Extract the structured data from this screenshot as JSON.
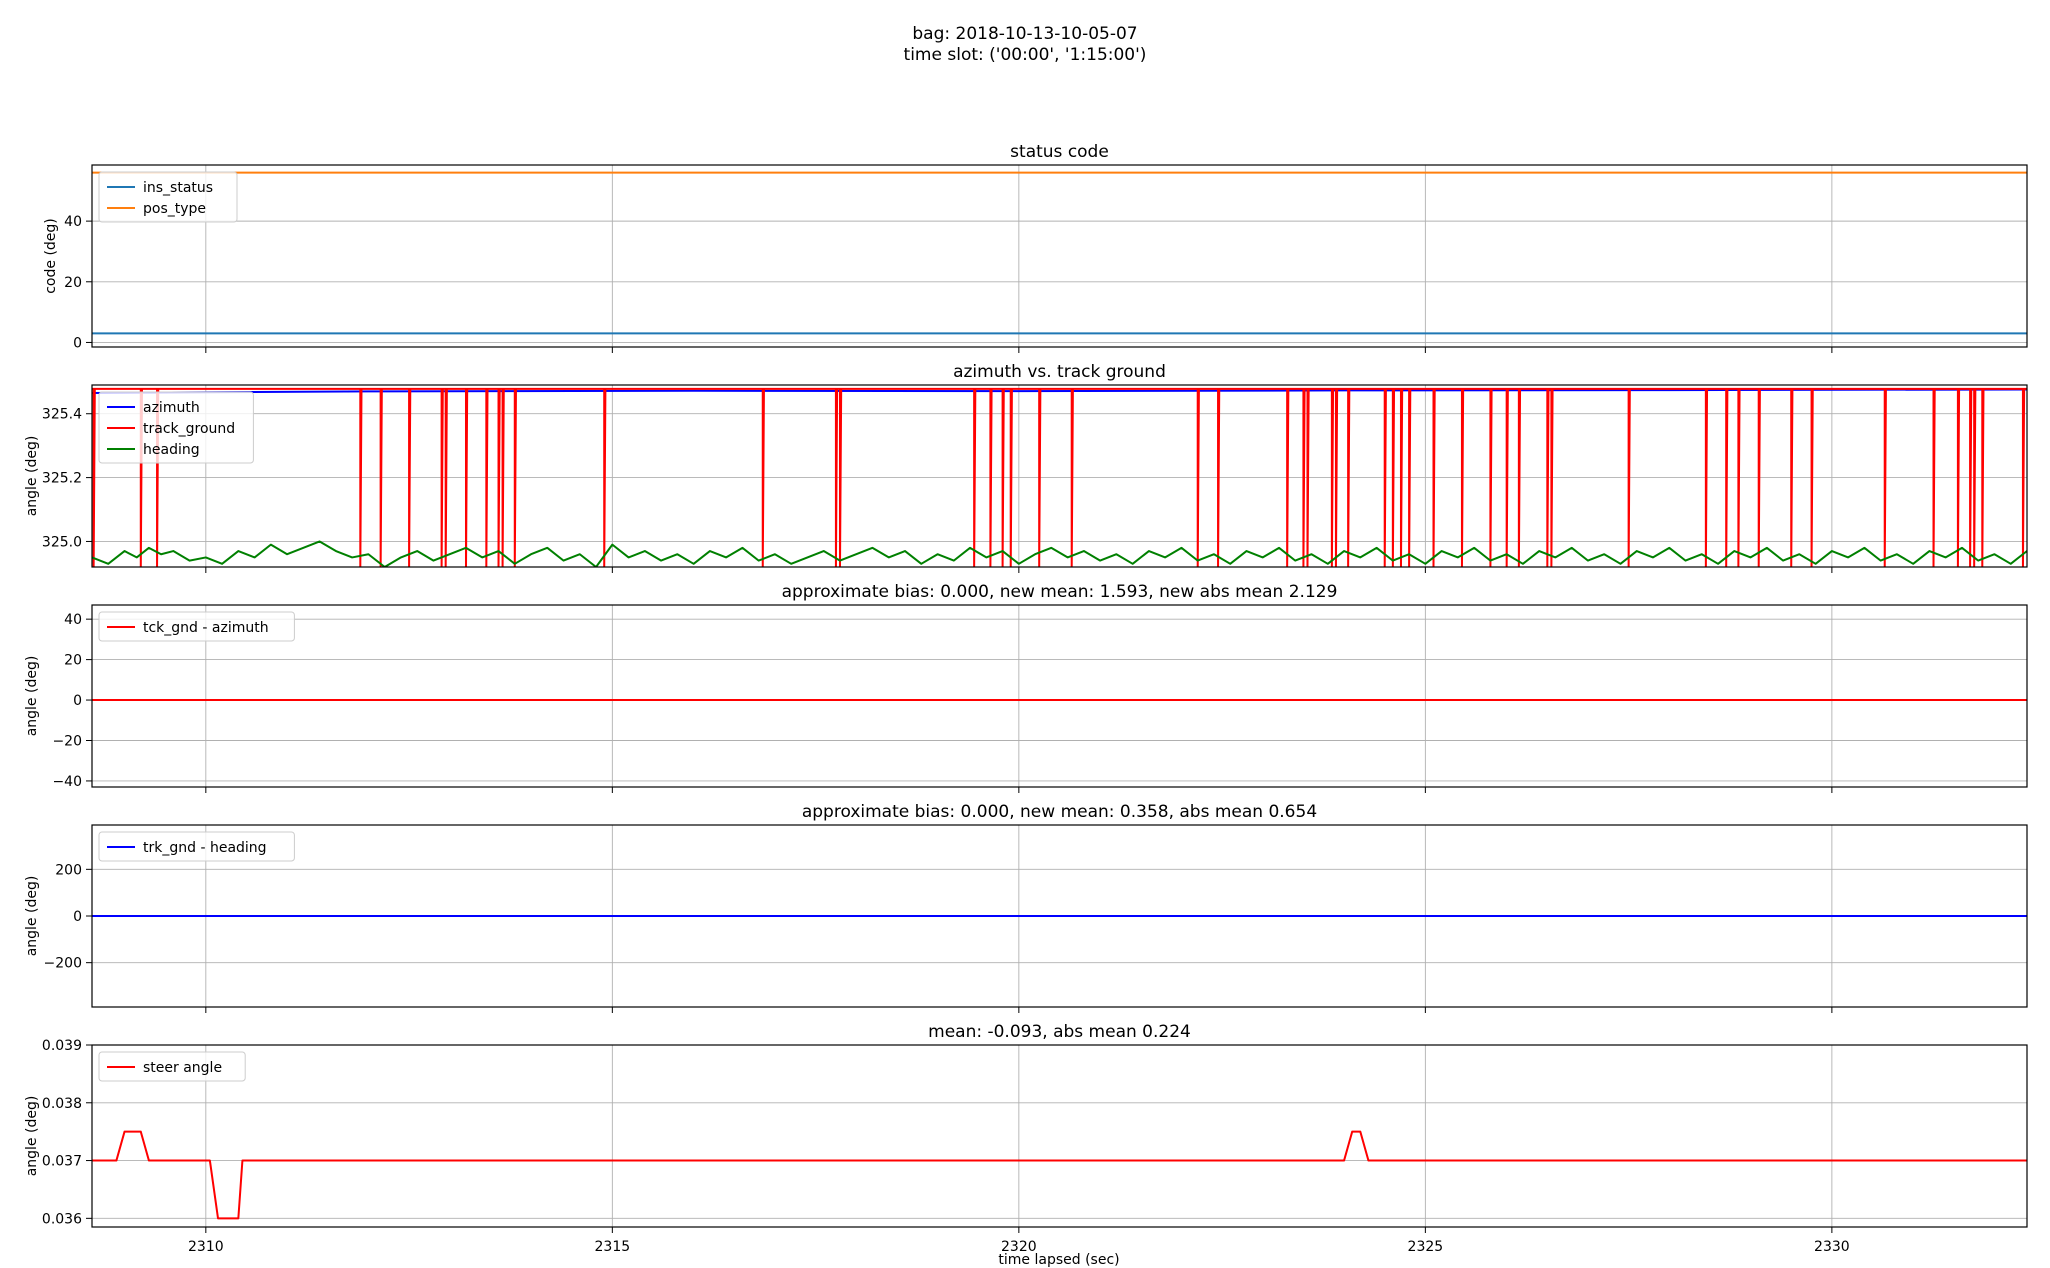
{
  "figure": {
    "suptitle_line1": "bag: 2018-10-13-10-05-07",
    "suptitle_line2": "time slot: ('00:00', '1:15:00')",
    "xlabel": "time lapsed (sec)",
    "xlim": [
      2308.6,
      2332.4
    ],
    "xticks": [
      2310,
      2315,
      2320,
      2325,
      2330
    ],
    "xtick_labels": [
      "2310",
      "2315",
      "2320",
      "2325",
      "2330"
    ]
  },
  "chart_data": [
    {
      "type": "line",
      "title": "status code",
      "ylabel": "code (deg)",
      "ylim": [
        -1.5,
        58.5
      ],
      "yticks": [
        0,
        20,
        40
      ],
      "ytick_labels": [
        "0",
        "20",
        "40"
      ],
      "grid": true,
      "legend": "upper left",
      "series": [
        {
          "name": "ins_status",
          "color": "#1f77b4",
          "x": [
            2308.6,
            2332.4
          ],
          "values": [
            3,
            3
          ]
        },
        {
          "name": "pos_type",
          "color": "#ff7f0e",
          "x": [
            2308.6,
            2332.4
          ],
          "values": [
            56,
            56
          ]
        }
      ]
    },
    {
      "type": "line",
      "title": "azimuth vs. track ground",
      "ylabel": "angle (deg)",
      "ylim": [
        324.92,
        325.49
      ],
      "yticks": [
        325.0,
        325.2,
        325.4
      ],
      "ytick_labels": [
        "325.0",
        "325.2",
        "325.4"
      ],
      "grid": true,
      "legend": "upper left",
      "series": [
        {
          "name": "azimuth",
          "color": "#0000ff",
          "x": [
            2308.6,
            2312,
            2316,
            2320,
            2324,
            2328,
            2332.4
          ],
          "values": [
            325.465,
            325.47,
            325.472,
            325.471,
            325.473,
            325.474,
            325.476
          ]
        },
        {
          "name": "track_ground",
          "color": "#ff0000",
          "baseline": 325.478,
          "low": 324.92,
          "spike_x": [
            2308.62,
            2309.2,
            2309.4,
            2311.9,
            2312.15,
            2312.5,
            2312.9,
            2312.95,
            2313.2,
            2313.45,
            2313.6,
            2313.65,
            2313.8,
            2314.9,
            2316.85,
            2317.75,
            2317.8,
            2319.45,
            2319.65,
            2319.8,
            2319.9,
            2320.25,
            2320.65,
            2322.2,
            2322.45,
            2323.3,
            2323.5,
            2323.55,
            2323.85,
            2323.9,
            2324.05,
            2324.5,
            2324.6,
            2324.7,
            2324.8,
            2325.1,
            2325.45,
            2325.8,
            2326.0,
            2326.15,
            2326.5,
            2326.55,
            2327.5,
            2328.45,
            2328.7,
            2328.85,
            2329.1,
            2329.5,
            2329.75,
            2330.65,
            2331.25,
            2331.55,
            2331.7,
            2331.75,
            2331.85,
            2332.35
          ]
        },
        {
          "name": "heading",
          "color": "#008000",
          "x": [
            2308.6,
            2308.8,
            2309.0,
            2309.15,
            2309.3,
            2309.45,
            2309.6,
            2309.8,
            2310.0,
            2310.2,
            2310.4,
            2310.6,
            2310.8,
            2311.0,
            2311.2,
            2311.4,
            2311.6,
            2311.8,
            2312.0,
            2312.2,
            2312.4,
            2312.6,
            2312.8,
            2313.0,
            2313.2,
            2313.4,
            2313.6,
            2313.8,
            2314.0,
            2314.2,
            2314.4,
            2314.6,
            2314.8,
            2315.0,
            2315.2,
            2315.4,
            2315.6,
            2315.8,
            2316.0,
            2316.2,
            2316.4,
            2316.6,
            2316.8,
            2317.0,
            2317.2,
            2317.4,
            2317.6,
            2317.8,
            2318.0,
            2318.2,
            2318.4,
            2318.6,
            2318.8,
            2319.0,
            2319.2,
            2319.4,
            2319.6,
            2319.8,
            2320.0,
            2320.2,
            2320.4,
            2320.6,
            2320.8,
            2321.0,
            2321.2,
            2321.4,
            2321.6,
            2321.8,
            2322.0,
            2322.2,
            2322.4,
            2322.6,
            2322.8,
            2323.0,
            2323.2,
            2323.4,
            2323.6,
            2323.8,
            2324.0,
            2324.2,
            2324.4,
            2324.6,
            2324.8,
            2325.0,
            2325.2,
            2325.4,
            2325.6,
            2325.8,
            2326.0,
            2326.2,
            2326.4,
            2326.6,
            2326.8,
            2327.0,
            2327.2,
            2327.4,
            2327.6,
            2327.8,
            2328.0,
            2328.2,
            2328.4,
            2328.6,
            2328.8,
            2329.0,
            2329.2,
            2329.4,
            2329.6,
            2329.8,
            2330.0,
            2330.2,
            2330.4,
            2330.6,
            2330.8,
            2331.0,
            2331.2,
            2331.4,
            2331.6,
            2331.8,
            2332.0,
            2332.2,
            2332.4
          ],
          "values": [
            324.95,
            324.93,
            324.97,
            324.95,
            324.98,
            324.96,
            324.97,
            324.94,
            324.95,
            324.93,
            324.97,
            324.95,
            324.99,
            324.96,
            324.98,
            325.0,
            324.97,
            324.95,
            324.96,
            324.92,
            324.95,
            324.97,
            324.94,
            324.96,
            324.98,
            324.95,
            324.97,
            324.93,
            324.96,
            324.98,
            324.94,
            324.96,
            324.92,
            324.99,
            324.95,
            324.97,
            324.94,
            324.96,
            324.93,
            324.97,
            324.95,
            324.98,
            324.94,
            324.96,
            324.93,
            324.95,
            324.97,
            324.94,
            324.96,
            324.98,
            324.95,
            324.97,
            324.93,
            324.96,
            324.94,
            324.98,
            324.95,
            324.97,
            324.93,
            324.96,
            324.98,
            324.95,
            324.97,
            324.94,
            324.96,
            324.93,
            324.97,
            324.95,
            324.98,
            324.94,
            324.96,
            324.93,
            324.97,
            324.95,
            324.98,
            324.94,
            324.96,
            324.93,
            324.97,
            324.95,
            324.98,
            324.94,
            324.96,
            324.93,
            324.97,
            324.95,
            324.98,
            324.94,
            324.96,
            324.93,
            324.97,
            324.95,
            324.98,
            324.94,
            324.96,
            324.93,
            324.97,
            324.95,
            324.98,
            324.94,
            324.96,
            324.93,
            324.97,
            324.95,
            324.98,
            324.94,
            324.96,
            324.93,
            324.97,
            324.95,
            324.98,
            324.94,
            324.96,
            324.93,
            324.97,
            324.95,
            324.98,
            324.94,
            324.96,
            324.93,
            324.97
          ]
        }
      ]
    },
    {
      "type": "line",
      "title": "approximate bias: 0.000, new mean: 1.593, new abs mean 2.129",
      "ylabel": "angle (deg)",
      "ylim": [
        -43,
        47
      ],
      "yticks": [
        -40,
        -20,
        0,
        20,
        40
      ],
      "ytick_labels": [
        "−40",
        "−20",
        "0",
        "20",
        "40"
      ],
      "grid": true,
      "legend": "upper left",
      "series": [
        {
          "name": "tck_gnd - azimuth",
          "color": "#ff0000",
          "x": [
            2308.6,
            2332.4
          ],
          "values": [
            0,
            0
          ]
        }
      ]
    },
    {
      "type": "line",
      "title": "approximate bias: 0.000, new mean: 0.358, abs mean 0.654",
      "ylabel": "angle (deg)",
      "ylim": [
        -390,
        390
      ],
      "yticks": [
        -200,
        0,
        200
      ],
      "ytick_labels": [
        "−200",
        "0",
        "200"
      ],
      "grid": true,
      "legend": "upper left",
      "series": [
        {
          "name": "trk_gnd - heading",
          "color": "#0000ff",
          "x": [
            2308.6,
            2332.4
          ],
          "values": [
            0,
            0
          ]
        }
      ]
    },
    {
      "type": "line",
      "title": "mean: -0.093, abs mean 0.224",
      "ylabel": "angle (deg)",
      "ylim": [
        0.03585,
        0.039
      ],
      "yticks": [
        0.036,
        0.037,
        0.038,
        0.039
      ],
      "ytick_labels": [
        "0.036",
        "0.037",
        "0.038",
        "0.039"
      ],
      "grid": true,
      "legend": "upper left",
      "series": [
        {
          "name": "steer angle",
          "color": "#ff0000",
          "x": [
            2308.6,
            2308.9,
            2309.0,
            2309.2,
            2309.3,
            2310.05,
            2310.15,
            2310.4,
            2310.45,
            2324.0,
            2324.1,
            2324.2,
            2324.3,
            2332.4
          ],
          "values": [
            0.037,
            0.037,
            0.0375,
            0.0375,
            0.037,
            0.037,
            0.036,
            0.036,
            0.037,
            0.037,
            0.0375,
            0.0375,
            0.037,
            0.037
          ]
        }
      ]
    }
  ]
}
